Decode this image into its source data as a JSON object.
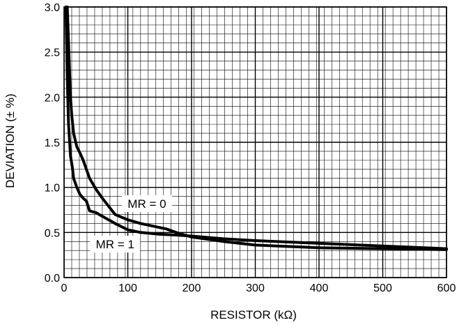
{
  "chart_data": {
    "type": "line",
    "title": "",
    "xlabel": "RESISTOR (kΩ)",
    "ylabel": "DEVIATION (± %)",
    "xlim": [
      0,
      600
    ],
    "ylim": [
      0,
      3.0
    ],
    "xticks": [
      0,
      100,
      200,
      300,
      400,
      500,
      600
    ],
    "xtick_labels": [
      "0",
      "100",
      "200",
      "300",
      "400",
      "500",
      "600"
    ],
    "yticks": [
      0,
      0.5,
      1.0,
      1.5,
      2.0,
      2.5,
      3.0
    ],
    "ytick_labels": [
      "0.0",
      "0.5",
      "1.0",
      "1.5",
      "2.0",
      "2.5",
      "3.0"
    ],
    "grid": true,
    "series": [
      {
        "name": "MR = 0",
        "x": [
          5,
          8,
          10,
          12,
          15,
          20,
          25,
          30,
          40,
          50,
          60,
          80,
          100,
          120,
          140,
          160,
          180,
          200,
          250,
          300,
          400,
          500,
          600
        ],
        "y": [
          3.0,
          2.4,
          2.0,
          1.8,
          1.6,
          1.45,
          1.38,
          1.3,
          1.1,
          0.98,
          0.88,
          0.7,
          0.64,
          0.6,
          0.57,
          0.54,
          0.49,
          0.45,
          0.4,
          0.36,
          0.33,
          0.32,
          0.31
        ]
      },
      {
        "name": "MR = 1",
        "x": [
          3,
          5,
          7,
          10,
          13,
          15,
          20,
          25,
          30,
          35,
          40,
          50,
          60,
          80,
          100,
          120,
          150,
          180,
          200,
          250,
          300,
          400,
          500,
          600
        ],
        "y": [
          3.0,
          2.2,
          1.7,
          1.35,
          1.22,
          1.1,
          1.0,
          0.92,
          0.88,
          0.85,
          0.74,
          0.72,
          0.68,
          0.6,
          0.53,
          0.5,
          0.48,
          0.47,
          0.46,
          0.43,
          0.41,
          0.38,
          0.35,
          0.32
        ]
      }
    ],
    "annotations": [
      {
        "text": "MR = 0",
        "x": 130,
        "y": 0.82
      },
      {
        "text": "MR = 1",
        "x": 80,
        "y": 0.37
      }
    ]
  }
}
